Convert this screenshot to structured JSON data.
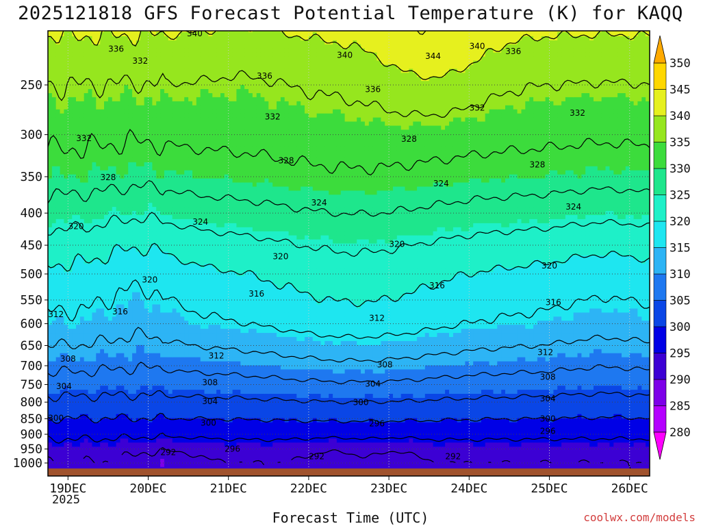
{
  "chart_data": {
    "type": "heatmap",
    "title": "2025121818 GFS Forecast Potential Temperature (K) for KAQQ",
    "xlabel": "Forecast Time (UTC)",
    "ylabel": "",
    "x_ticks": [
      "19DEC",
      "20DEC",
      "21DEC",
      "22DEC",
      "23DEC",
      "24DEC",
      "25DEC",
      "26DEC"
    ],
    "x_year_label": "2025",
    "x_range_days": [
      -0.25,
      7.25
    ],
    "y_ticks": [
      250,
      300,
      350,
      400,
      450,
      500,
      550,
      600,
      650,
      700,
      750,
      800,
      850,
      900,
      950,
      1000
    ],
    "y_range_hpa": [
      1025,
      200
    ],
    "y_axis_inverted": true,
    "grid": "dotted",
    "units": "K",
    "colorbar": {
      "levels": [
        280,
        285,
        290,
        295,
        300,
        305,
        310,
        315,
        320,
        325,
        330,
        335,
        340,
        345,
        350
      ],
      "colors": [
        "#ff00ff",
        "#b400ff",
        "#7d00e8",
        "#3c00d4",
        "#0000e6",
        "#0a46e6",
        "#1e78f0",
        "#2db4f5",
        "#1ee6f0",
        "#1ef0c8",
        "#1ee68c",
        "#3cdc3c",
        "#96e61e",
        "#e6f01e",
        "#ffd700",
        "#ffaa00"
      ],
      "placement": "right",
      "extend": "both"
    },
    "contour_labels": [
      {
        "x": 1.58,
        "y": 207,
        "t": "340"
      },
      {
        "x": 3.45,
        "y": 224,
        "t": "340"
      },
      {
        "x": 4.55,
        "y": 225,
        "t": "344"
      },
      {
        "x": 5.1,
        "y": 217,
        "t": "340"
      },
      {
        "x": 5.55,
        "y": 221,
        "t": "336"
      },
      {
        "x": 0.6,
        "y": 219,
        "t": "336"
      },
      {
        "x": 0.9,
        "y": 229,
        "t": "332"
      },
      {
        "x": 2.45,
        "y": 242,
        "t": "336"
      },
      {
        "x": 3.8,
        "y": 254,
        "t": "336"
      },
      {
        "x": 5.1,
        "y": 272,
        "t": "332"
      },
      {
        "x": 6.35,
        "y": 277,
        "t": "332"
      },
      {
        "x": 2.55,
        "y": 281,
        "t": "332"
      },
      {
        "x": 0.2,
        "y": 304,
        "t": "332"
      },
      {
        "x": 4.25,
        "y": 305,
        "t": "328"
      },
      {
        "x": 2.72,
        "y": 330,
        "t": "328"
      },
      {
        "x": 5.85,
        "y": 335,
        "t": "328"
      },
      {
        "x": 0.5,
        "y": 351,
        "t": "328"
      },
      {
        "x": 4.65,
        "y": 359,
        "t": "324"
      },
      {
        "x": 3.13,
        "y": 385,
        "t": "324"
      },
      {
        "x": 6.3,
        "y": 391,
        "t": "324"
      },
      {
        "x": 1.65,
        "y": 413,
        "t": "324"
      },
      {
        "x": 0.1,
        "y": 420,
        "t": "320"
      },
      {
        "x": 2.65,
        "y": 469,
        "t": "320"
      },
      {
        "x": 4.1,
        "y": 448,
        "t": "320"
      },
      {
        "x": 6.0,
        "y": 485,
        "t": "320"
      },
      {
        "x": 1.02,
        "y": 511,
        "t": "320"
      },
      {
        "x": 2.35,
        "y": 538,
        "t": "316"
      },
      {
        "x": 4.6,
        "y": 522,
        "t": "316"
      },
      {
        "x": 0.65,
        "y": 574,
        "t": "316"
      },
      {
        "x": 6.05,
        "y": 555,
        "t": "316"
      },
      {
        "x": -0.15,
        "y": 580,
        "t": "312"
      },
      {
        "x": 3.85,
        "y": 588,
        "t": "312"
      },
      {
        "x": 1.85,
        "y": 675,
        "t": "312"
      },
      {
        "x": 5.95,
        "y": 667,
        "t": "312"
      },
      {
        "x": 0.0,
        "y": 683,
        "t": "308"
      },
      {
        "x": 3.95,
        "y": 697,
        "t": "308"
      },
      {
        "x": 1.77,
        "y": 744,
        "t": "308"
      },
      {
        "x": 5.98,
        "y": 730,
        "t": "308"
      },
      {
        "x": -0.05,
        "y": 755,
        "t": "304"
      },
      {
        "x": 3.8,
        "y": 748,
        "t": "304"
      },
      {
        "x": 1.77,
        "y": 798,
        "t": "304"
      },
      {
        "x": 5.98,
        "y": 790,
        "t": "304"
      },
      {
        "x": -0.15,
        "y": 848,
        "t": "300"
      },
      {
        "x": 3.65,
        "y": 801,
        "t": "300"
      },
      {
        "x": 1.75,
        "y": 863,
        "t": "300"
      },
      {
        "x": 5.98,
        "y": 850,
        "t": "300"
      },
      {
        "x": 3.85,
        "y": 866,
        "t": "296"
      },
      {
        "x": 5.98,
        "y": 890,
        "t": "296"
      },
      {
        "x": 2.05,
        "y": 950,
        "t": "296"
      },
      {
        "x": 1.25,
        "y": 962,
        "t": "292"
      },
      {
        "x": 3.1,
        "y": 976,
        "t": "292"
      },
      {
        "x": 4.8,
        "y": 976,
        "t": "292"
      }
    ]
  },
  "credit": "coolwx.com/models"
}
